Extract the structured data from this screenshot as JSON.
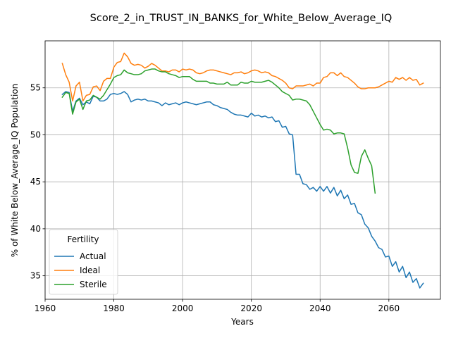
{
  "chart_data": {
    "type": "line",
    "title": "Score_2_in_TRUST_IN_BANKS_for_White_Below_Average_IQ",
    "xlabel": "Years",
    "ylabel": "% of White Below_Average_IQ Population",
    "xlim": [
      1960,
      2075
    ],
    "ylim": [
      32.5,
      60
    ],
    "xticks": [
      1960,
      1980,
      2000,
      2020,
      2040,
      2060
    ],
    "yticks": [
      35,
      40,
      45,
      50,
      55
    ],
    "grid": true,
    "legend": {
      "title": "Fertility",
      "placement": "lower-left"
    },
    "series": [
      {
        "name": "Actual",
        "color": "#1f77b4",
        "x": [
          1965,
          1966,
          1967,
          1968,
          1969,
          1970,
          1971,
          1972,
          1973,
          1974,
          1975,
          1976,
          1977,
          1978,
          1979,
          1980,
          1981,
          1982,
          1983,
          1984,
          1985,
          1986,
          1987,
          1988,
          1989,
          1990,
          1991,
          1992,
          1993,
          1994,
          1995,
          1996,
          1997,
          1998,
          1999,
          2000,
          2001,
          2002,
          2003,
          2004,
          2005,
          2006,
          2007,
          2008,
          2009,
          2010,
          2011,
          2012,
          2013,
          2014,
          2015,
          2016,
          2017,
          2018,
          2019,
          2020,
          2021,
          2022,
          2023,
          2024,
          2025,
          2026,
          2027,
          2028,
          2029,
          2030,
          2031,
          2032,
          2033,
          2034,
          2035,
          2036,
          2037,
          2038,
          2039,
          2040,
          2041,
          2042,
          2043,
          2044,
          2045,
          2046,
          2047,
          2048,
          2049,
          2050,
          2051,
          2052,
          2053,
          2054,
          2055,
          2056,
          2057,
          2058,
          2059,
          2060,
          2061,
          2062,
          2063,
          2064,
          2065,
          2066,
          2067,
          2068,
          2069,
          2070
        ],
        "values": [
          54.3,
          54.6,
          54.5,
          52.5,
          53.6,
          53.9,
          53.2,
          53.5,
          53.3,
          54.1,
          54.0,
          53.6,
          53.6,
          53.8,
          54.3,
          54.4,
          54.3,
          54.4,
          54.6,
          54.3,
          53.5,
          53.7,
          53.8,
          53.7,
          53.8,
          53.6,
          53.6,
          53.5,
          53.4,
          53.1,
          53.4,
          53.2,
          53.3,
          53.4,
          53.2,
          53.4,
          53.5,
          53.4,
          53.3,
          53.2,
          53.3,
          53.4,
          53.5,
          53.5,
          53.2,
          53.1,
          52.9,
          52.8,
          52.7,
          52.4,
          52.2,
          52.1,
          52.1,
          52.0,
          51.9,
          52.3,
          52.0,
          52.1,
          51.9,
          52.0,
          51.8,
          51.9,
          51.4,
          51.5,
          50.8,
          50.9,
          50.1,
          50.0,
          45.8,
          45.8,
          44.8,
          44.7,
          44.2,
          44.4,
          44.0,
          44.5,
          44.0,
          44.5,
          43.8,
          44.4,
          43.5,
          44.1,
          43.2,
          43.6,
          42.6,
          42.7,
          41.7,
          41.5,
          40.5,
          40.1,
          39.2,
          38.7,
          38.0,
          37.8,
          37.0,
          37.1,
          36.0,
          36.5,
          35.4,
          36.0,
          34.8,
          35.4,
          34.3,
          34.7,
          33.7,
          34.2
        ]
      },
      {
        "name": "Ideal",
        "color": "#ff7f0e",
        "x": [
          1965,
          1966,
          1967,
          1968,
          1969,
          1970,
          1971,
          1972,
          1973,
          1974,
          1975,
          1976,
          1977,
          1978,
          1979,
          1980,
          1981,
          1982,
          1983,
          1984,
          1985,
          1986,
          1987,
          1988,
          1989,
          1990,
          1991,
          1992,
          1993,
          1994,
          1995,
          1996,
          1997,
          1998,
          1999,
          2000,
          2001,
          2002,
          2003,
          2004,
          2005,
          2006,
          2007,
          2008,
          2009,
          2010,
          2011,
          2012,
          2013,
          2014,
          2015,
          2016,
          2017,
          2018,
          2019,
          2020,
          2021,
          2022,
          2023,
          2024,
          2025,
          2026,
          2027,
          2028,
          2029,
          2030,
          2031,
          2032,
          2033,
          2034,
          2035,
          2036,
          2037,
          2038,
          2039,
          2040,
          2041,
          2042,
          2043,
          2044,
          2045,
          2046,
          2047,
          2048,
          2049,
          2050,
          2051,
          2052,
          2053,
          2054,
          2055,
          2056,
          2057,
          2058,
          2059,
          2060,
          2061,
          2062,
          2063,
          2064,
          2065,
          2066,
          2067,
          2068,
          2069,
          2070
        ],
        "values": [
          57.6,
          56.4,
          55.6,
          53.6,
          55.2,
          55.6,
          53.6,
          54.2,
          54.3,
          55.1,
          55.2,
          54.7,
          55.7,
          56.0,
          56.0,
          57.2,
          57.7,
          57.8,
          58.7,
          58.3,
          57.6,
          57.4,
          57.5,
          57.4,
          57.1,
          57.3,
          57.6,
          57.4,
          57.1,
          56.8,
          56.8,
          56.7,
          56.9,
          56.9,
          56.7,
          57.0,
          56.9,
          57.0,
          56.9,
          56.6,
          56.5,
          56.6,
          56.8,
          56.9,
          56.9,
          56.8,
          56.7,
          56.6,
          56.5,
          56.4,
          56.6,
          56.6,
          56.7,
          56.5,
          56.6,
          56.8,
          56.9,
          56.8,
          56.6,
          56.7,
          56.6,
          56.3,
          56.2,
          56.0,
          55.8,
          55.5,
          55.0,
          54.9,
          55.2,
          55.2,
          55.2,
          55.3,
          55.4,
          55.2,
          55.5,
          55.5,
          56.1,
          56.2,
          56.6,
          56.6,
          56.3,
          56.6,
          56.2,
          56.1,
          55.8,
          55.5,
          55.1,
          54.9,
          54.9,
          55.0,
          55.0,
          55.0,
          55.1,
          55.3,
          55.5,
          55.7,
          55.6,
          56.1,
          55.9,
          56.1,
          55.8,
          56.1,
          55.8,
          55.9,
          55.3,
          55.5
        ]
      },
      {
        "name": "Sterile",
        "color": "#2ca02c",
        "x": [
          1965,
          1966,
          1967,
          1968,
          1969,
          1970,
          1971,
          1972,
          1973,
          1974,
          1975,
          1976,
          1977,
          1978,
          1979,
          1980,
          1981,
          1982,
          1983,
          1984,
          1985,
          1986,
          1987,
          1988,
          1989,
          1990,
          1991,
          1992,
          1993,
          1994,
          1995,
          1996,
          1997,
          1998,
          1999,
          2000,
          2001,
          2002,
          2003,
          2004,
          2005,
          2006,
          2007,
          2008,
          2009,
          2010,
          2011,
          2012,
          2013,
          2014,
          2015,
          2016,
          2017,
          2018,
          2019,
          2020,
          2021,
          2022,
          2023,
          2024,
          2025,
          2026,
          2027,
          2028,
          2029,
          2030,
          2031,
          2032,
          2033,
          2034,
          2035,
          2036,
          2037,
          2038,
          2039,
          2040,
          2041,
          2042,
          2043,
          2044,
          2045,
          2046,
          2047,
          2048,
          2049,
          2050,
          2051,
          2052,
          2053,
          2054,
          2055,
          2056
        ],
        "values": [
          54.0,
          54.5,
          54.4,
          52.2,
          53.5,
          53.8,
          52.7,
          53.6,
          53.7,
          54.2,
          54.0,
          53.8,
          54.2,
          54.8,
          55.4,
          56.1,
          56.3,
          56.4,
          56.9,
          56.6,
          56.5,
          56.4,
          56.4,
          56.5,
          56.8,
          56.9,
          57.0,
          57.0,
          56.8,
          56.7,
          56.7,
          56.5,
          56.4,
          56.3,
          56.1,
          56.2,
          56.2,
          56.2,
          55.9,
          55.7,
          55.7,
          55.7,
          55.7,
          55.5,
          55.5,
          55.4,
          55.4,
          55.4,
          55.6,
          55.3,
          55.3,
          55.3,
          55.6,
          55.5,
          55.5,
          55.7,
          55.6,
          55.6,
          55.6,
          55.7,
          55.8,
          55.6,
          55.3,
          55.0,
          54.6,
          54.4,
          54.2,
          53.7,
          53.8,
          53.8,
          53.7,
          53.6,
          53.2,
          52.5,
          51.8,
          51.1,
          50.5,
          50.6,
          50.5,
          50.1,
          50.2,
          50.2,
          50.1,
          48.6,
          46.8,
          46.0,
          45.9,
          47.7,
          48.4,
          47.5,
          46.7,
          43.8
        ]
      }
    ]
  }
}
